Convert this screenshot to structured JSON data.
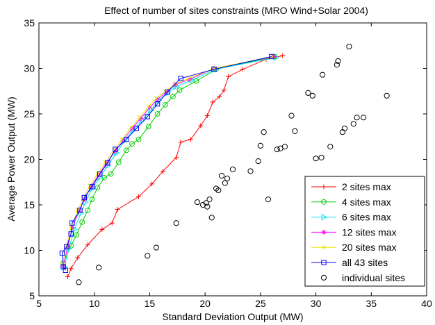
{
  "chart_data": {
    "type": "line",
    "title": "Effect of number of sites constraints (MRO Wind+Solar 2004)",
    "xlabel": "Standard Deviation Output (MW)",
    "ylabel": "Average Power Output (MW)",
    "xlim": [
      5,
      40
    ],
    "ylim": [
      5,
      35
    ],
    "xticks": [
      5,
      10,
      15,
      20,
      25,
      30,
      35,
      40
    ],
    "yticks": [
      5,
      10,
      15,
      20,
      25,
      30,
      35
    ],
    "grid": false,
    "legend_position": "bottom-right",
    "series": [
      {
        "name": "2 sites max",
        "color": "#ff0000",
        "marker": "plus",
        "x": [
          7.6,
          7.9,
          8.5,
          9.4,
          10.7,
          11.6,
          12.1,
          14.0,
          15.2,
          16.2,
          17.4,
          17.8,
          18.7,
          19.6,
          20.2,
          20.7,
          21.3,
          21.7,
          22.1,
          23.4,
          25.5,
          27.0
        ],
        "y": [
          7.1,
          8.0,
          9.2,
          10.6,
          12.3,
          13.0,
          14.5,
          15.9,
          17.3,
          18.7,
          20.2,
          21.9,
          22.2,
          23.7,
          24.8,
          26.3,
          26.9,
          27.6,
          29.1,
          29.9,
          31.0,
          31.4
        ]
      },
      {
        "name": "4 sites max",
        "color": "#00cc00",
        "marker": "circle",
        "x": [
          7.2,
          7.9,
          8.4,
          8.9,
          9.4,
          9.8,
          10.3,
          10.9,
          11.5,
          12.2,
          12.9,
          13.4,
          14.0,
          14.9,
          15.7,
          16.4,
          17.1,
          17.7,
          19.2,
          21.0,
          26.3
        ],
        "y": [
          8.6,
          10.5,
          11.7,
          13.1,
          14.4,
          15.6,
          16.9,
          18.0,
          18.4,
          19.7,
          21.0,
          21.7,
          22.2,
          23.6,
          25.0,
          26.0,
          26.9,
          27.6,
          28.6,
          29.9,
          31.3
        ]
      },
      {
        "name": "6 sites max",
        "color": "#00e5ee",
        "marker": "triangle-right",
        "x": [
          7.3,
          7.7,
          8.2,
          8.8,
          9.2,
          9.8,
          10.5,
          11.2,
          12.0,
          12.7,
          13.5,
          14.3,
          15.1,
          15.8,
          16.6,
          17.4,
          18.8,
          20.9,
          26.4
        ],
        "y": [
          8.2,
          10.2,
          12.3,
          14.1,
          15.3,
          16.8,
          18.0,
          19.3,
          20.7,
          22.0,
          23.2,
          24.3,
          25.4,
          26.5,
          27.3,
          28.0,
          28.7,
          29.9,
          31.2
        ]
      },
      {
        "name": "12 sites max",
        "color": "#ff00ff",
        "marker": "asterisk",
        "x": [
          7.2,
          7.6,
          8.0,
          8.6,
          9.1,
          9.7,
          10.4,
          11.1,
          11.9,
          12.6,
          13.4,
          14.2,
          15.0,
          15.7,
          16.5,
          17.3,
          18.6,
          20.8,
          26.2
        ],
        "y": [
          8.3,
          10.4,
          12.4,
          14.3,
          15.6,
          17.0,
          18.3,
          19.6,
          20.9,
          22.1,
          23.4,
          24.5,
          25.7,
          26.6,
          27.4,
          28.2,
          28.8,
          30.0,
          31.3
        ]
      },
      {
        "name": "20 sites max",
        "color": "#e5e500",
        "marker": "x",
        "x": [
          7.1,
          7.5,
          7.9,
          8.5,
          9.0,
          9.6,
          10.3,
          11.0,
          11.8,
          12.5,
          13.3,
          14.1,
          14.9,
          15.6,
          16.4,
          17.3,
          18.5,
          20.8,
          26.1
        ],
        "y": [
          8.4,
          10.5,
          12.5,
          14.4,
          15.7,
          17.1,
          18.4,
          19.7,
          21.0,
          22.2,
          23.5,
          24.6,
          25.8,
          26.7,
          27.5,
          28.3,
          28.9,
          30.0,
          31.3
        ]
      },
      {
        "name": "all 43 sites",
        "color": "#0000ff",
        "marker": "square",
        "x": [
          7.4,
          7.2,
          7.1,
          7.5,
          7.9,
          8.0,
          8.7,
          9.1,
          9.8,
          10.5,
          11.2,
          11.9,
          12.9,
          13.8,
          14.8,
          15.7,
          16.6,
          17.8,
          20.8,
          26.0
        ],
        "y": [
          7.8,
          8.2,
          9.7,
          10.4,
          11.8,
          13.0,
          14.4,
          15.8,
          17.0,
          18.4,
          19.6,
          21.1,
          22.2,
          23.4,
          24.7,
          26.1,
          27.4,
          28.9,
          29.9,
          31.3
        ]
      },
      {
        "name": "individual sites",
        "color": "#000000",
        "marker": "open-circle",
        "line": false,
        "x": [
          8.6,
          10.4,
          14.8,
          15.6,
          17.4,
          19.3,
          19.8,
          20.1,
          20.2,
          20.4,
          20.6,
          21.0,
          21.2,
          21.5,
          21.8,
          22.0,
          22.5,
          24.1,
          24.8,
          25.0,
          25.3,
          25.7,
          26.5,
          26.8,
          27.2,
          27.8,
          28.1,
          29.3,
          29.7,
          30.0,
          30.5,
          30.6,
          31.3,
          31.9,
          32.0,
          32.4,
          32.6,
          33.0,
          33.4,
          33.7,
          34.3,
          36.4
        ],
        "y": [
          6.5,
          8.1,
          9.4,
          10.3,
          13.0,
          15.3,
          15.0,
          15.2,
          14.8,
          15.6,
          13.6,
          16.8,
          16.6,
          18.2,
          17.4,
          17.9,
          18.9,
          18.7,
          19.8,
          21.5,
          23.0,
          15.6,
          21.1,
          21.2,
          21.4,
          24.8,
          23.1,
          27.3,
          27.0,
          20.1,
          20.2,
          29.3,
          21.4,
          30.4,
          30.8,
          23.0,
          23.4,
          32.4,
          23.9,
          24.6,
          24.6,
          27.0
        ]
      }
    ]
  }
}
